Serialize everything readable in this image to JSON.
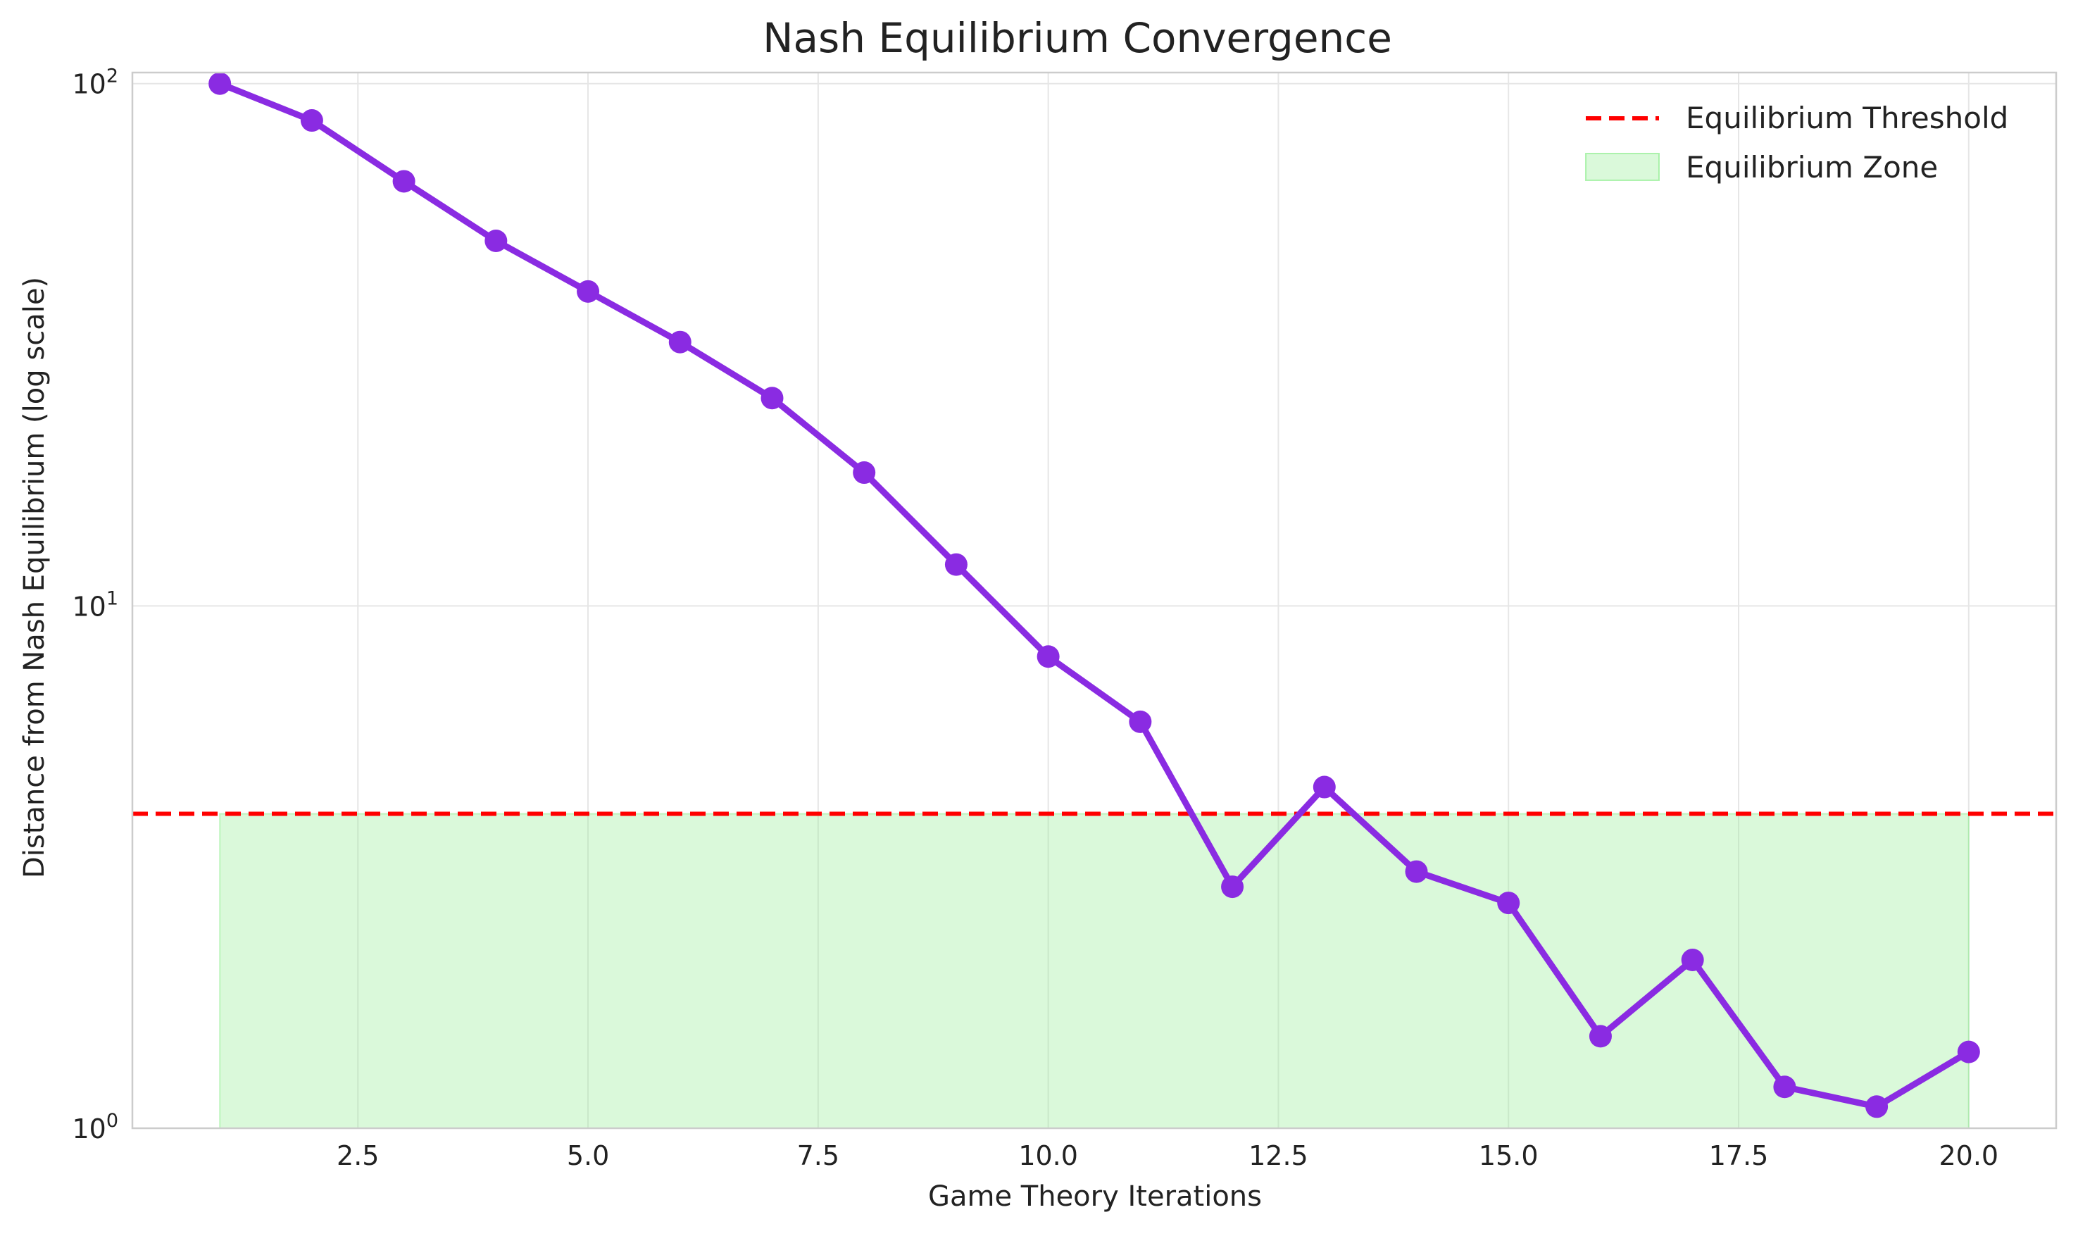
{
  "chart_data": {
    "type": "line",
    "title": "Nash Equilibrium Convergence",
    "xlabel": "Game Theory Iterations",
    "ylabel": "Distance from Nash Equilibrium (log scale)",
    "yscale": "log",
    "xlim": [
      0.05,
      20.95
    ],
    "ylim": [
      1,
      105
    ],
    "grid": true,
    "legend_position": "top-right",
    "x_ticks": [
      2.5,
      5.0,
      7.5,
      10.0,
      12.5,
      15.0,
      17.5,
      20.0
    ],
    "x_tick_labels": [
      "2.5",
      "5.0",
      "7.5",
      "10.0",
      "12.5",
      "15.0",
      "17.5",
      "20.0"
    ],
    "y_ticks": [
      1,
      10,
      100
    ],
    "y_tick_labels": [
      {
        "base": "10",
        "exp": "0"
      },
      {
        "base": "10",
        "exp": "1"
      },
      {
        "base": "10",
        "exp": "2"
      }
    ],
    "series": [
      {
        "name": "",
        "color": "#8a2be2",
        "x": [
          1,
          2,
          3,
          4,
          5,
          6,
          7,
          8,
          9,
          10,
          11,
          12,
          13,
          14,
          15,
          16,
          17,
          18,
          19,
          20
        ],
        "values": [
          100,
          85,
          65,
          50,
          40,
          32,
          25,
          18,
          12,
          8,
          6,
          2.9,
          4.5,
          3.1,
          2.7,
          1.5,
          2.1,
          1.2,
          1.1,
          1.4
        ]
      }
    ],
    "threshold": {
      "name": "Equilibrium Threshold",
      "value": 4,
      "color": "#ff0000",
      "style": "dashed"
    },
    "zone": {
      "name": "Equilibrium Zone",
      "x_range": [
        1,
        20
      ],
      "y_range": [
        1,
        4
      ],
      "color": "#90ee90"
    }
  }
}
